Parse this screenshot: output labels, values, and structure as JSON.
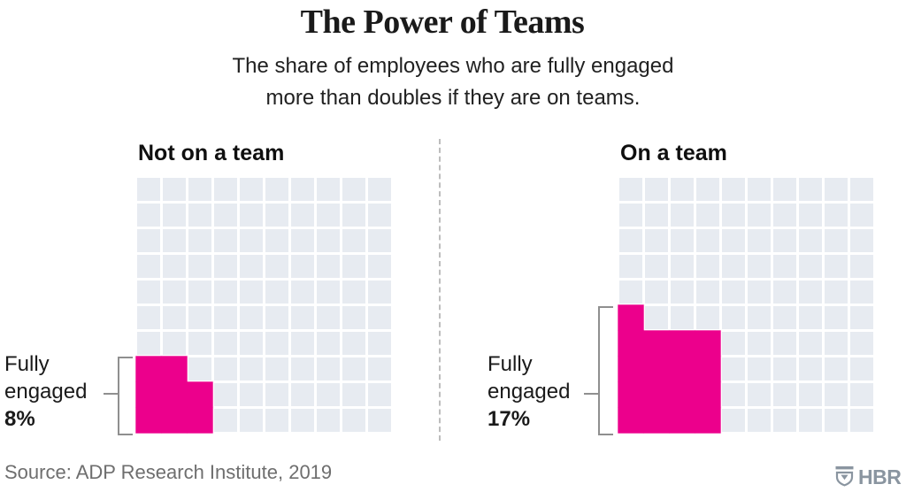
{
  "header": {
    "title": "The Power of Teams",
    "subtitle_line1": "The share of employees who are fully engaged",
    "subtitle_line2": "more than doubles if they are on teams."
  },
  "grid": {
    "rows": 10,
    "cols": 10
  },
  "panels": [
    {
      "heading": "Not on a team",
      "label_line1": "Fully",
      "label_line2": "engaged",
      "value_label": "8%",
      "filled_cells": 8,
      "rows_from_bottom": [
        3,
        3,
        2
      ]
    },
    {
      "heading": "On a team",
      "label_line1": "Fully",
      "label_line2": "engaged",
      "value_label": "17%",
      "filled_cells": 17,
      "rows_from_bottom": [
        4,
        4,
        4,
        4,
        1
      ]
    }
  ],
  "colors": {
    "filled": "#ec008c",
    "empty": "#e7ebf1",
    "bracket": "#8f8f8f",
    "divider": "#bdbdbd",
    "source_text": "#6e6e6e",
    "logo": "#8a95a0"
  },
  "footer": {
    "source": "Source: ADP Research Institute, 2019",
    "logo_text": "HBR"
  },
  "chart_data": {
    "type": "waffle",
    "title": "The Power of Teams",
    "subtitle": "The share of employees who are fully engaged more than doubles if they are on teams.",
    "categories": [
      "Not on a team",
      "On a team"
    ],
    "values": [
      8,
      17
    ],
    "value_labels": [
      "Fully engaged 8%",
      "Fully engaged 17%"
    ],
    "unit": "percent of employees; 1 square = 1%",
    "grid_rows": 10,
    "grid_cols": 10,
    "fill_origin": "bottom-left",
    "fill_pattern_rows_from_bottom": [
      [
        3,
        3,
        2
      ],
      [
        4,
        4,
        4,
        4,
        1
      ]
    ],
    "legend": "off",
    "source": "Source: ADP Research Institute, 2019"
  }
}
